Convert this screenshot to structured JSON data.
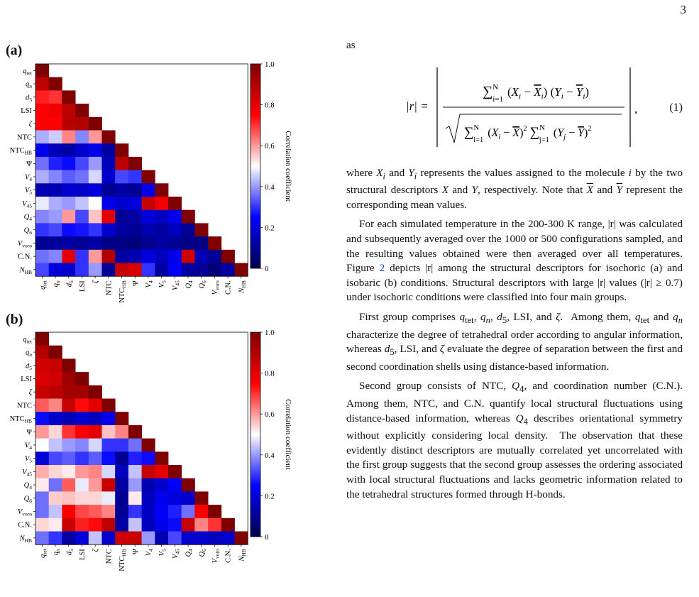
{
  "page": {
    "number": "3"
  },
  "figure": {
    "descriptors": [
      "q_tet",
      "q_n",
      "d_5",
      "LSI",
      "ζ",
      "NTC",
      "NTC_HB",
      "Ψ",
      "V_4",
      "V_5",
      "V_45",
      "Q_4",
      "Q_6",
      "V_voro",
      "C.N.",
      "N_HB"
    ],
    "colorbar_ticks": [
      "0",
      "0.2",
      "0.4",
      "0.6",
      "0.8",
      "1.0"
    ],
    "colorbar_label": "Correlation coefficient",
    "colormap": [
      "#00004c",
      "#0000ff",
      "#ffffff",
      "#ff0000",
      "#7f0000"
    ]
  },
  "chart_data": [
    {
      "type": "heatmap",
      "panel": "(a)",
      "labels": [
        "q_tet",
        "q_n",
        "d_5",
        "LSI",
        "ζ",
        "NTC",
        "NTC_HB",
        "Ψ",
        "V_4",
        "V_5",
        "V_45",
        "Q_4",
        "Q_6",
        "V_voro",
        "C.N.",
        "N_HB"
      ],
      "clim": [
        0,
        1
      ],
      "colorbar_label": "Correlation coefficient",
      "lower_triangle": [
        [
          1.0
        ],
        [
          0.88,
          1.0
        ],
        [
          0.72,
          0.7,
          1.0
        ],
        [
          0.75,
          0.78,
          0.88,
          1.0
        ],
        [
          0.76,
          0.75,
          0.89,
          0.9,
          1.0
        ],
        [
          0.42,
          0.45,
          0.62,
          0.38,
          0.6,
          1.0
        ],
        [
          0.22,
          0.15,
          0.12,
          0.18,
          0.22,
          0.12,
          1.0
        ],
        [
          0.36,
          0.28,
          0.26,
          0.32,
          0.4,
          0.15,
          0.88,
          1.0
        ],
        [
          0.42,
          0.38,
          0.34,
          0.36,
          0.46,
          0.18,
          0.32,
          0.3,
          1.0
        ],
        [
          0.14,
          0.14,
          0.18,
          0.17,
          0.2,
          0.1,
          0.12,
          0.1,
          0.22,
          1.0
        ],
        [
          0.48,
          0.42,
          0.4,
          0.44,
          0.5,
          0.22,
          0.18,
          0.2,
          0.86,
          0.78,
          1.0
        ],
        [
          0.38,
          0.4,
          0.6,
          0.32,
          0.56,
          0.8,
          0.1,
          0.12,
          0.2,
          0.16,
          0.22,
          1.0
        ],
        [
          0.3,
          0.32,
          0.26,
          0.27,
          0.3,
          0.18,
          0.12,
          0.1,
          0.14,
          0.12,
          0.16,
          0.1,
          1.0
        ],
        [
          0.1,
          0.11,
          0.12,
          0.1,
          0.12,
          0.08,
          0.08,
          0.07,
          0.09,
          0.12,
          0.1,
          0.08,
          0.08,
          1.0
        ],
        [
          0.36,
          0.38,
          0.8,
          0.3,
          0.6,
          0.9,
          0.12,
          0.14,
          0.2,
          0.16,
          0.22,
          0.84,
          0.15,
          0.1,
          1.0
        ],
        [
          0.32,
          0.2,
          0.18,
          0.3,
          0.4,
          0.1,
          0.86,
          0.82,
          0.3,
          0.12,
          0.24,
          0.12,
          0.1,
          0.06,
          0.12,
          1.0
        ]
      ]
    },
    {
      "type": "heatmap",
      "panel": "(b)",
      "labels": [
        "q_tet",
        "q_n",
        "d_5",
        "LSI",
        "ζ",
        "NTC",
        "NTC_HB",
        "Ψ",
        "V_4",
        "V_5",
        "V_45",
        "Q_4",
        "Q_6",
        "V_voro",
        "C.N.",
        "N_HB"
      ],
      "clim": [
        0,
        1
      ],
      "colorbar_label": "Correlation coefficient",
      "lower_triangle": [
        [
          1.0
        ],
        [
          0.9,
          1.0
        ],
        [
          0.84,
          0.86,
          1.0
        ],
        [
          0.82,
          0.84,
          0.94,
          1.0
        ],
        [
          0.86,
          0.88,
          0.93,
          0.93,
          1.0
        ],
        [
          0.66,
          0.62,
          0.86,
          0.74,
          0.8,
          1.0
        ],
        [
          0.26,
          0.18,
          0.15,
          0.18,
          0.16,
          0.22,
          1.0
        ],
        [
          0.6,
          0.54,
          0.7,
          0.76,
          0.8,
          0.56,
          0.62,
          1.0
        ],
        [
          0.5,
          0.44,
          0.4,
          0.38,
          0.46,
          0.3,
          0.3,
          0.36,
          1.0
        ],
        [
          0.2,
          0.32,
          0.34,
          0.3,
          0.34,
          0.26,
          0.1,
          0.28,
          0.26,
          1.0
        ],
        [
          0.58,
          0.54,
          0.52,
          0.6,
          0.62,
          0.46,
          0.16,
          0.44,
          0.86,
          0.8,
          1.0
        ],
        [
          0.52,
          0.36,
          0.66,
          0.48,
          0.6,
          0.86,
          0.12,
          0.4,
          0.14,
          0.18,
          0.24,
          1.0
        ],
        [
          0.36,
          0.55,
          0.56,
          0.54,
          0.54,
          0.48,
          0.1,
          0.52,
          0.16,
          0.22,
          0.2,
          0.18,
          1.0
        ],
        [
          0.36,
          0.44,
          0.76,
          0.68,
          0.66,
          0.62,
          0.1,
          0.3,
          0.16,
          0.24,
          0.28,
          0.36,
          0.76,
          1.0
        ],
        [
          0.54,
          0.52,
          0.86,
          0.72,
          0.74,
          0.88,
          0.12,
          0.44,
          0.16,
          0.22,
          0.26,
          0.86,
          0.62,
          0.7,
          1.0
        ],
        [
          0.36,
          0.3,
          0.12,
          0.2,
          0.44,
          0.18,
          0.84,
          0.86,
          0.4,
          0.14,
          0.32,
          0.18,
          0.18,
          0.16,
          0.18,
          1.0
        ]
      ]
    }
  ],
  "text": {
    "as": "as",
    "eq_lhs": "|r| =",
    "eq_number": "(1)",
    "p1": "where X_i and Y_i represents the values assigned to the molecule i by the two structural descriptors X and Y, respectively. Note that X̄ and Ȳ represent the corresponding mean values.",
    "p2a": "For each simulated temperature in the 200-300 K range, |r| was calculated and subsequently averaged over the 1000 or 500 configurations sampled, and the resulting values obtained were then averaged over all temperatures. Figure ",
    "p2_ref": "2",
    "p2b": " depicts |r| among the structural descriptors for isochoric (a) and isobaric (b) conditions.  Structural descriptors with large |r| values (|r| ≥ 0.7) under isochoric conditions were classified into four main groups.",
    "p3": "First group comprises q_tet, q_n, d_5, LSI, and ζ.  Among them, q_tet and q_n characterize the degree of tetrahedral order according to angular information, whereas d_5, LSI, and ζ evaluate the degree of separation between the first and second coordination shells using distance-based information.",
    "p4": "Second group consists of NTC, Q_4, and coordination number (C.N.). Among them, NTC, and C.N. quantify local structural fluctuations using distance-based information, whereas Q_4 describes orientational symmetry without explicitly considering local density.  The observation that these evidently distinct descriptors are mutually correlated yet uncorrelated with the first group suggests that the second group assesses the ordering associated with local structural fluctuations and lacks geometric information related to the tetrahedral structures formed through H-bonds."
  }
}
